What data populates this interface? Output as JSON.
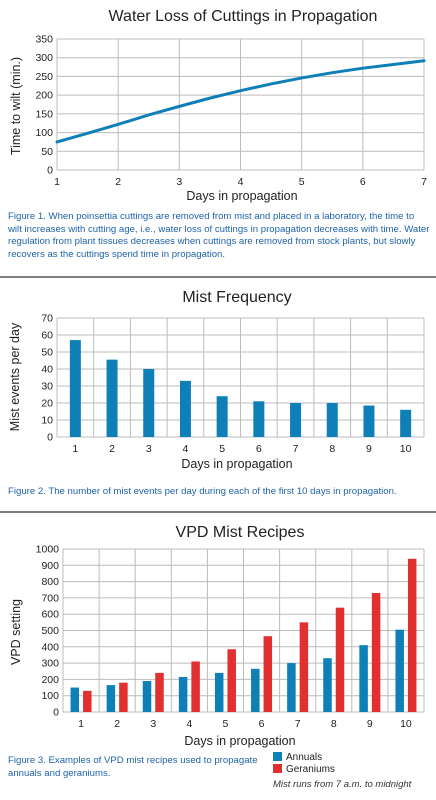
{
  "colors": {
    "annuals": "#0f7fb8",
    "geraniums": "#e03030",
    "caption": "#1f63a8",
    "grid": "#bcbcbc",
    "divider": "#555555"
  },
  "captions": {
    "fig1": "Figure 1. When poinsettia cuttings are removed from mist and placed in a laboratory, the time to wilt increases with cutting age, i.e., water loss of cuttings in propagation decreases with time. Water regulation from plant tissues decreases when cuttings are removed from stock plants, but slowly recovers as the cuttings spend time in propagation.",
    "fig2": "Figure 2. The number of mist events per day during each of the first 10 days in propagation.",
    "fig3": "Figure 3. Examples of VPD mist recipes used to propagate annuals and geraniums."
  },
  "note": "Mist runs from 7 a.m. to midnight",
  "chart_data": [
    {
      "type": "line",
      "title": "Water Loss of Cuttings in Propagation",
      "xlabel": "Days in propagation",
      "ylabel": "Time to wilt (min.)",
      "x": [
        1,
        1.5,
        2,
        2.5,
        3,
        3.5,
        4,
        4.5,
        5,
        5.5,
        6,
        6.5,
        7
      ],
      "y": [
        75,
        98,
        122,
        147,
        170,
        192,
        212,
        230,
        246,
        260,
        272,
        282,
        292
      ],
      "xlim": [
        1,
        7
      ],
      "ylim": [
        0,
        350
      ],
      "xticks": [
        1,
        2,
        3,
        4,
        5,
        6,
        7
      ],
      "yticks": [
        0,
        50,
        100,
        150,
        200,
        250,
        300,
        350
      ],
      "grid": true,
      "color": "#0f7fb8"
    },
    {
      "type": "bar",
      "title": "Mist Frequency",
      "xlabel": "Days in propagation",
      "ylabel": "Mist events per day",
      "categories": [
        "1",
        "2",
        "3",
        "4",
        "5",
        "6",
        "7",
        "8",
        "9",
        "10"
      ],
      "values": [
        57,
        45.5,
        40,
        33,
        24,
        21,
        20,
        20,
        18.5,
        16
      ],
      "ylim": [
        0,
        70
      ],
      "yticks": [
        0,
        10,
        20,
        30,
        40,
        50,
        60,
        70
      ],
      "grid": true,
      "color": "#0f7fb8"
    },
    {
      "type": "bar",
      "title": "VPD Mist Recipes",
      "xlabel": "Days in propagation",
      "ylabel": "VPD setting",
      "categories": [
        "1",
        "2",
        "3",
        "4",
        "5",
        "6",
        "7",
        "8",
        "9",
        "10"
      ],
      "series": [
        {
          "name": "Annuals",
          "values": [
            150,
            165,
            190,
            215,
            240,
            265,
            300,
            330,
            410,
            505
          ],
          "color": "#0f7fb8"
        },
        {
          "name": "Geraniums",
          "values": [
            130,
            180,
            240,
            310,
            385,
            465,
            550,
            640,
            730,
            940
          ],
          "color": "#e03030"
        }
      ],
      "ylim": [
        0,
        1000
      ],
      "yticks": [
        0,
        100,
        200,
        300,
        400,
        500,
        600,
        700,
        800,
        900,
        1000
      ],
      "grid": true,
      "legend": "bottom-right"
    }
  ]
}
